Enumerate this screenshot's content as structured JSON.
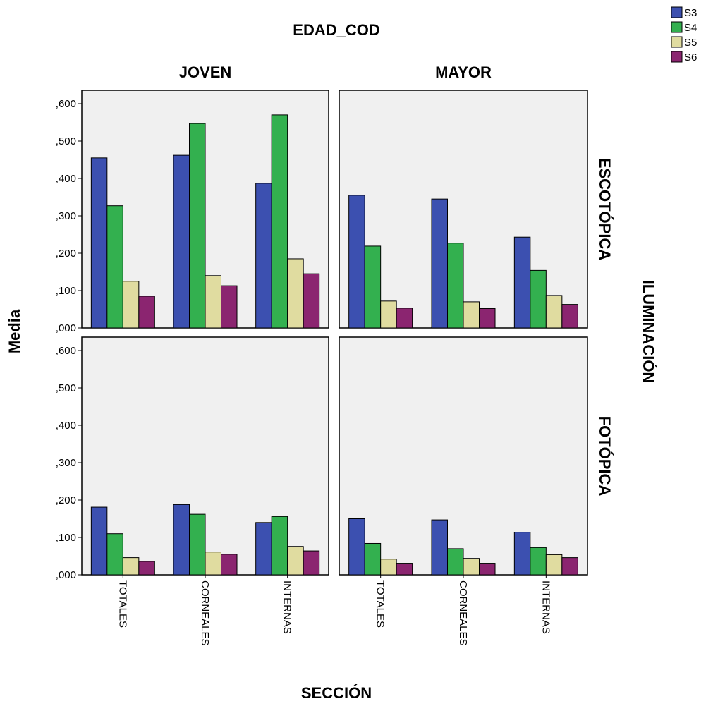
{
  "chart_data": {
    "type": "bar",
    "title": "",
    "column_facet_title": "EDAD_COD",
    "row_facet_title": "ILUMINACIÓN",
    "xlabel": "SECCIÓN",
    "ylabel": "Media",
    "ylim": [
      0,
      0.6
    ],
    "yticks": [
      ",000",
      ",100",
      ",200",
      ",300",
      ",400",
      ",500",
      ",600"
    ],
    "column_facets": [
      "JOVEN",
      "MAYOR"
    ],
    "row_facets": [
      "ESCOTÓPICA",
      "FOTÓPICA"
    ],
    "categories": [
      "TOTALES",
      "CORNEALES",
      "INTERNAS"
    ],
    "legend": {
      "position": "top-right",
      "entries": [
        "S3",
        "S4",
        "S5",
        "S6"
      ]
    },
    "series_colors": [
      "#3c50b0",
      "#33b04f",
      "#e0dca0",
      "#8b2570"
    ],
    "grid": false,
    "panels": [
      {
        "column": "JOVEN",
        "row": "ESCOTÓPICA",
        "series": [
          {
            "name": "S3",
            "values": [
              0.455,
              0.462,
              0.387
            ]
          },
          {
            "name": "S4",
            "values": [
              0.327,
              0.547,
              0.57
            ]
          },
          {
            "name": "S5",
            "values": [
              0.125,
              0.14,
              0.185
            ]
          },
          {
            "name": "S6",
            "values": [
              0.085,
              0.113,
              0.145
            ]
          }
        ]
      },
      {
        "column": "MAYOR",
        "row": "ESCOTÓPICA",
        "series": [
          {
            "name": "S3",
            "values": [
              0.355,
              0.345,
              0.243
            ]
          },
          {
            "name": "S4",
            "values": [
              0.219,
              0.227,
              0.154
            ]
          },
          {
            "name": "S5",
            "values": [
              0.072,
              0.07,
              0.087
            ]
          },
          {
            "name": "S6",
            "values": [
              0.053,
              0.052,
              0.063
            ]
          }
        ]
      },
      {
        "column": "JOVEN",
        "row": "FOTÓPICA",
        "series": [
          {
            "name": "S3",
            "values": [
              0.181,
              0.188,
              0.14
            ]
          },
          {
            "name": "S4",
            "values": [
              0.11,
              0.162,
              0.156
            ]
          },
          {
            "name": "S5",
            "values": [
              0.046,
              0.061,
              0.076
            ]
          },
          {
            "name": "S6",
            "values": [
              0.036,
              0.055,
              0.064
            ]
          }
        ]
      },
      {
        "column": "MAYOR",
        "row": "FOTÓPICA",
        "series": [
          {
            "name": "S3",
            "values": [
              0.15,
              0.147,
              0.114
            ]
          },
          {
            "name": "S4",
            "values": [
              0.084,
              0.07,
              0.073
            ]
          },
          {
            "name": "S5",
            "values": [
              0.042,
              0.044,
              0.054
            ]
          },
          {
            "name": "S6",
            "values": [
              0.031,
              0.031,
              0.046
            ]
          }
        ]
      }
    ]
  }
}
